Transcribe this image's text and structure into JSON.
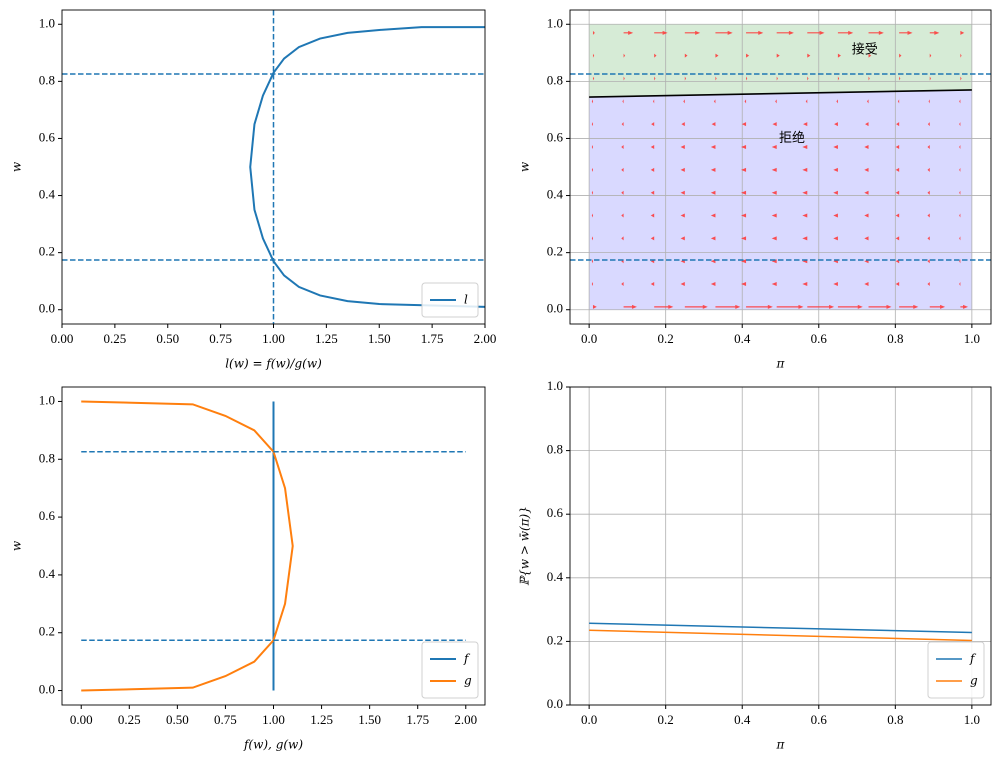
{
  "chart_data": [
    {
      "type": "line",
      "xlabel": "l(w) = f(w)/g(w)",
      "ylabel": "w",
      "xlim": [
        0,
        2
      ],
      "ylim": [
        -0.05,
        1.05
      ],
      "xticks": [
        {
          "value": 0,
          "label": "0.00"
        },
        0.25,
        {
          "value": 0.5,
          "label": "0.50"
        },
        0.75,
        {
          "value": 1,
          "label": "1.00"
        },
        1.25,
        {
          "value": 1.5,
          "label": "1.50"
        },
        1.75,
        {
          "value": 2,
          "label": "2.00"
        }
      ],
      "yticks": [
        {
          "value": 0,
          "label": "0.0"
        },
        0.2,
        0.4,
        0.6,
        0.8,
        {
          "value": 1,
          "label": "1.0"
        }
      ],
      "grid": false,
      "legend": "lower right",
      "linewidth": 2,
      "hlines": [
        0.174,
        0.826
      ],
      "vlines": [
        1
      ],
      "ref_color": "#1f77b4",
      "series": [
        {
          "name": "l",
          "color": "#1f77b4",
          "x": [
            2.0,
            1.5,
            1.35,
            1.22,
            1.12,
            1.05,
            1.0,
            0.95,
            0.91,
            0.89,
            0.91,
            0.95,
            1.0,
            1.05,
            1.12,
            1.22,
            1.35,
            1.5,
            1.7,
            2.0
          ],
          "values": [
            0.01,
            0.02,
            0.03,
            0.05,
            0.08,
            0.12,
            0.17,
            0.25,
            0.35,
            0.5,
            0.65,
            0.75,
            0.83,
            0.88,
            0.92,
            0.95,
            0.97,
            0.98,
            0.99,
            0.99
          ]
        }
      ]
    },
    {
      "type": "quiver",
      "xlabel": "π",
      "ylabel": "w",
      "xlim": [
        -0.05,
        1.05
      ],
      "ylim": [
        -0.05,
        1.05
      ],
      "xticks": [
        {
          "value": 0,
          "label": "0.0"
        },
        0.2,
        0.4,
        0.6,
        0.8,
        {
          "value": 1,
          "label": "1.0"
        }
      ],
      "yticks": [
        {
          "value": 0,
          "label": "0.0"
        },
        0.2,
        0.4,
        0.6,
        0.8,
        {
          "value": 1,
          "label": "1.0"
        }
      ],
      "grid": true,
      "hlines": [
        0.174,
        0.826
      ],
      "ref_color": "#1f77b4",
      "region_colors": [
        "#d9d9ff",
        "#d6ebd6"
      ],
      "region_ylim": [
        0,
        1
      ],
      "boundary": {
        "x": [
          0,
          1
        ],
        "values": [
          0.745,
          0.77
        ],
        "color": "#000000"
      },
      "arrow_color": "#ff3333",
      "annotations": [
        {
          "text": "接受",
          "x": 0.72,
          "y": 0.91
        },
        {
          "text": "拒绝",
          "x": 0.53,
          "y": 0.6
        }
      ],
      "quiver_x": [
        0.01,
        0.09,
        0.17,
        0.25,
        0.33,
        0.41,
        0.49,
        0.57,
        0.65,
        0.73,
        0.81,
        0.89,
        0.97
      ],
      "quiver_y": [
        0.01,
        0.09,
        0.17,
        0.25,
        0.33,
        0.41,
        0.49,
        0.57,
        0.65,
        0.73,
        0.81,
        0.89,
        0.97
      ],
      "quiver_u": [
        [
          0.01,
          0.035,
          0.05,
          0.06,
          0.065,
          0.07,
          0.07,
          0.07,
          0.065,
          0.06,
          0.05,
          0.04,
          0.02
        ],
        [
          -0.002,
          -0.006,
          -0.009,
          -0.011,
          -0.012,
          -0.013,
          -0.013,
          -0.013,
          -0.012,
          -0.011,
          -0.009,
          -0.006,
          -0.002
        ],
        [
          -0.002,
          -0.006,
          -0.009,
          -0.011,
          -0.012,
          -0.013,
          -0.013,
          -0.013,
          -0.012,
          -0.011,
          -0.009,
          -0.006,
          -0.002
        ],
        [
          -0.002,
          -0.006,
          -0.009,
          -0.011,
          -0.012,
          -0.013,
          -0.013,
          -0.013,
          -0.012,
          -0.011,
          -0.009,
          -0.006,
          -0.002
        ],
        [
          -0.002,
          -0.006,
          -0.009,
          -0.011,
          -0.012,
          -0.013,
          -0.013,
          -0.013,
          -0.012,
          -0.011,
          -0.009,
          -0.006,
          -0.002
        ],
        [
          -0.002,
          -0.006,
          -0.009,
          -0.011,
          -0.012,
          -0.013,
          -0.013,
          -0.013,
          -0.012,
          -0.011,
          -0.009,
          -0.006,
          -0.002
        ],
        [
          -0.002,
          -0.006,
          -0.009,
          -0.011,
          -0.012,
          -0.013,
          -0.013,
          -0.013,
          -0.012,
          -0.011,
          -0.009,
          -0.006,
          -0.002
        ],
        [
          -0.002,
          -0.006,
          -0.009,
          -0.011,
          -0.012,
          -0.013,
          -0.013,
          -0.013,
          -0.012,
          -0.011,
          -0.009,
          -0.006,
          -0.002
        ],
        [
          -0.002,
          -0.005,
          -0.008,
          -0.009,
          -0.01,
          -0.011,
          -0.011,
          -0.011,
          -0.01,
          -0.009,
          -0.008,
          -0.005,
          -0.002
        ],
        [
          -0.001,
          -0.002,
          -0.003,
          -0.004,
          -0.004,
          -0.004,
          -0.004,
          -0.004,
          -0.004,
          -0.004,
          -0.003,
          -0.002,
          -0.001
        ],
        [
          0.001,
          0.002,
          0.003,
          0.003,
          0.003,
          0.003,
          0.003,
          0.003,
          0.003,
          0.003,
          0.003,
          0.002,
          0.001
        ],
        [
          0.001,
          0.004,
          0.006,
          0.007,
          0.008,
          0.008,
          0.008,
          0.008,
          0.008,
          0.007,
          0.006,
          0.004,
          0.001
        ],
        [
          0.005,
          0.025,
          0.035,
          0.04,
          0.045,
          0.045,
          0.045,
          0.045,
          0.04,
          0.04,
          0.035,
          0.025,
          0.01
        ]
      ]
    },
    {
      "type": "line",
      "xlabel": "f(w), g(w)",
      "ylabel": "w",
      "xlim": [
        -0.1,
        2.1
      ],
      "ylim": [
        -0.05,
        1.05
      ],
      "xticks": [
        {
          "value": 0,
          "label": "0.00"
        },
        0.25,
        {
          "value": 0.5,
          "label": "0.50"
        },
        0.75,
        {
          "value": 1,
          "label": "1.00"
        },
        1.25,
        {
          "value": 1.5,
          "label": "1.50"
        },
        1.75,
        {
          "value": 2,
          "label": "2.00"
        }
      ],
      "yticks": [
        {
          "value": 0,
          "label": "0.0"
        },
        0.2,
        0.4,
        0.6,
        0.8,
        {
          "value": 1,
          "label": "1.0"
        }
      ],
      "grid": false,
      "legend": "lower right",
      "linewidth": 2,
      "hlines": [
        0.174,
        0.826
      ],
      "hline_x": [
        0,
        2
      ],
      "ref_color": "#1f77b4",
      "series": [
        {
          "name": "f",
          "color": "#1f77b4",
          "x": [
            1,
            1
          ],
          "values": [
            0,
            1
          ]
        },
        {
          "name": "g",
          "color": "#ff7f0e",
          "x": [
            0,
            0.58,
            0.75,
            0.9,
            1.0,
            1.06,
            1.1,
            1.06,
            1.0,
            0.9,
            0.75,
            0.58,
            0
          ],
          "values": [
            0,
            0.01,
            0.05,
            0.1,
            0.174,
            0.3,
            0.5,
            0.7,
            0.826,
            0.9,
            0.95,
            0.99,
            1
          ]
        }
      ]
    },
    {
      "type": "line",
      "xlabel": "π",
      "ylabel": "ℙ{w > w̄(π)}",
      "xlim": [
        -0.05,
        1.05
      ],
      "ylim": [
        0,
        1
      ],
      "xticks": [
        {
          "value": 0,
          "label": "0.0"
        },
        0.2,
        0.4,
        0.6,
        0.8,
        {
          "value": 1,
          "label": "1.0"
        }
      ],
      "yticks": [
        {
          "value": 0,
          "label": "0.0"
        },
        0.2,
        0.4,
        0.6,
        0.8,
        {
          "value": 1,
          "label": "1.0"
        }
      ],
      "grid": true,
      "legend": "lower right",
      "linewidth": 1.5,
      "series": [
        {
          "name": "f",
          "color": "#1f77b4",
          "x": [
            0,
            1
          ],
          "values": [
            0.257,
            0.228
          ]
        },
        {
          "name": "g",
          "color": "#ff7f0e",
          "x": [
            0,
            1
          ],
          "values": [
            0.235,
            0.203
          ]
        }
      ]
    }
  ]
}
